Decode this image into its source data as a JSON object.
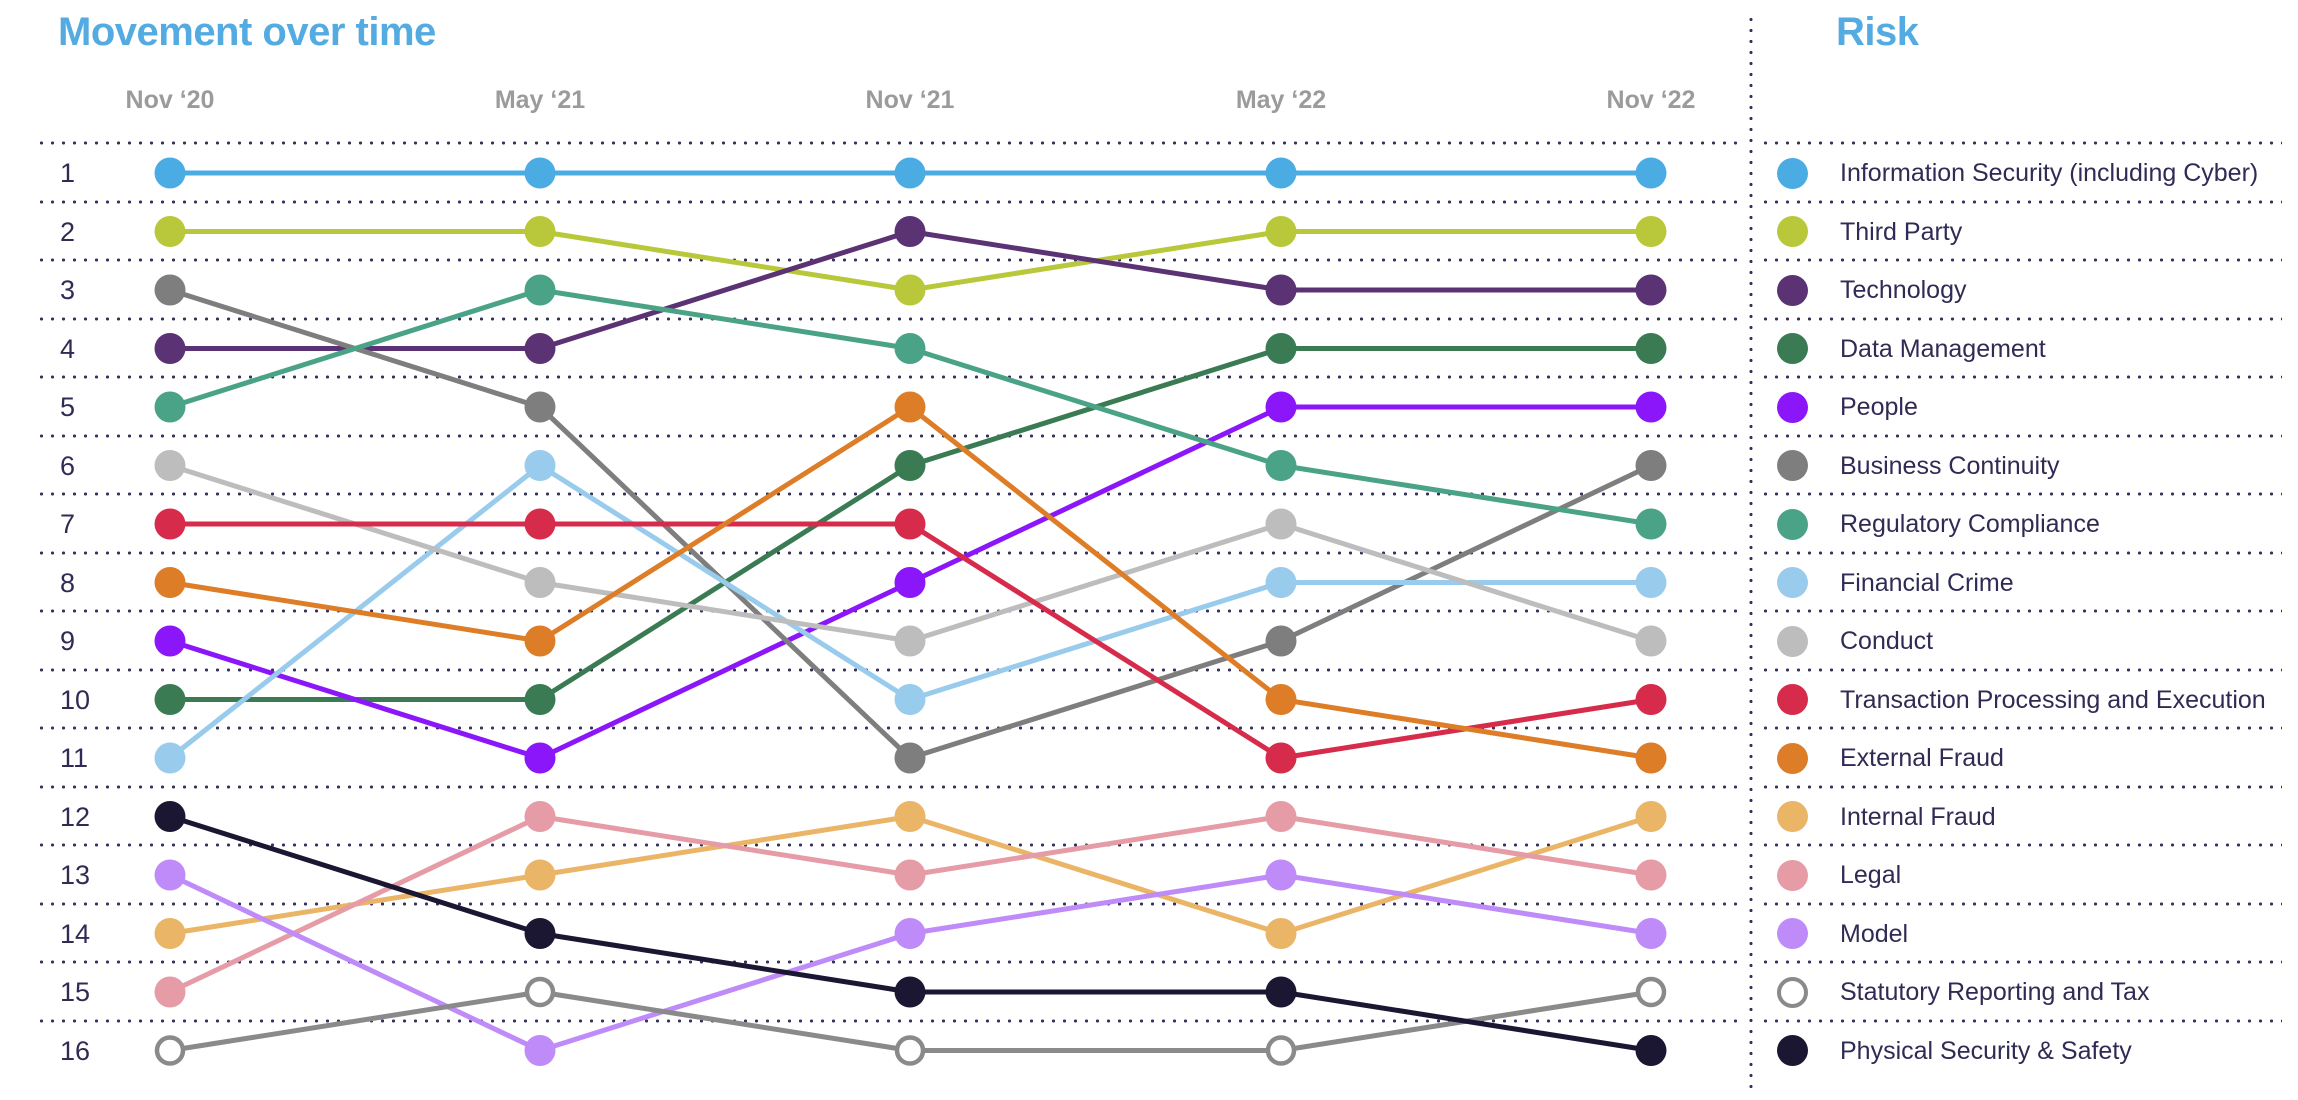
{
  "header": {
    "title": "Movement over time"
  },
  "legend": {
    "title": "Risk"
  },
  "colors": {
    "title_blue": "#53ABE1",
    "axis_label_gray": "#9B9B9B",
    "text_navy": "#2F2B54",
    "grid_dot_navy": "#38335E",
    "hollow_ring_gray": "#8A8A8A",
    "background": "#FFFFFF"
  },
  "chart_data": {
    "type": "line",
    "subtype": "bump-rank-chart",
    "title": "Movement over time",
    "legend_title": "Risk",
    "legend_position": "right",
    "grid": "dotted-horizontal",
    "x": [
      "Nov ‘20",
      "May ‘21",
      "Nov ‘21",
      "May ‘22",
      "Nov ‘22"
    ],
    "rank_labels": [
      "1",
      "2",
      "3",
      "4",
      "5",
      "6",
      "7",
      "8",
      "9",
      "10",
      "11",
      "12",
      "13",
      "14",
      "15",
      "16"
    ],
    "ylim": [
      1,
      16
    ],
    "y_meaning": "rank (1 = top risk)",
    "series": [
      {
        "name": "Information Security (including Cyber)",
        "color": "#4BACE4",
        "ranks": [
          1,
          1,
          1,
          1,
          1
        ]
      },
      {
        "name": "Third Party",
        "color": "#B9C83B",
        "ranks": [
          2,
          2,
          3,
          2,
          2
        ]
      },
      {
        "name": "Technology",
        "color": "#5B3273",
        "ranks": [
          4,
          4,
          2,
          3,
          3
        ]
      },
      {
        "name": "Data Management",
        "color": "#3A7B53",
        "ranks": [
          10,
          10,
          6,
          4,
          4
        ]
      },
      {
        "name": "People",
        "color": "#8B16F9",
        "ranks": [
          9,
          11,
          8,
          5,
          5
        ]
      },
      {
        "name": "Business Continuity",
        "color": "#7E7E7E",
        "ranks": [
          3,
          5,
          11,
          9,
          6
        ]
      },
      {
        "name": "Regulatory Compliance",
        "color": "#4AA386",
        "ranks": [
          5,
          3,
          4,
          6,
          7
        ]
      },
      {
        "name": "Financial Crime",
        "color": "#98CBEC",
        "ranks": [
          11,
          6,
          10,
          8,
          8
        ]
      },
      {
        "name": "Conduct",
        "color": "#BDBDBD",
        "ranks": [
          6,
          8,
          9,
          7,
          9
        ]
      },
      {
        "name": "Transaction Processing and Execution",
        "color": "#D62B4B",
        "ranks": [
          7,
          7,
          7,
          11,
          10
        ]
      },
      {
        "name": "External Fraud",
        "color": "#DE7D27",
        "ranks": [
          8,
          9,
          5,
          10,
          11
        ]
      },
      {
        "name": "Internal Fraud",
        "color": "#EAB566",
        "ranks": [
          14,
          13,
          12,
          14,
          12
        ]
      },
      {
        "name": "Legal",
        "color": "#E59CA7",
        "ranks": [
          15,
          12,
          13,
          12,
          13
        ]
      },
      {
        "name": "Model",
        "color": "#BE8BF8",
        "ranks": [
          13,
          16,
          14,
          13,
          14
        ]
      },
      {
        "name": "Statutory Reporting and Tax",
        "color": "#FFFFFF",
        "ring_color": "#8A8A8A",
        "hollow": true,
        "ranks": [
          16,
          15,
          16,
          16,
          15
        ]
      },
      {
        "name": "Physical Security & Safety",
        "color": "#1B1632",
        "ranks": [
          12,
          14,
          15,
          15,
          16
        ]
      }
    ]
  }
}
